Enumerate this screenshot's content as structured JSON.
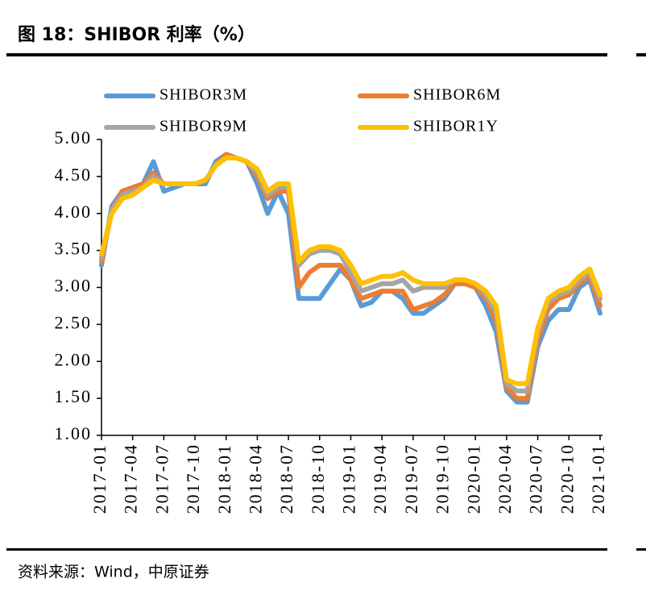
{
  "chart_data": {
    "type": "line",
    "title": "图 18：SHIBOR 利率（%）",
    "source": "资料来源：Wind，中原证券",
    "x": [
      "2017-01",
      "2017-02",
      "2017-03",
      "2017-04",
      "2017-05",
      "2017-06",
      "2017-07",
      "2017-08",
      "2017-09",
      "2017-10",
      "2017-11",
      "2017-12",
      "2018-01",
      "2018-02",
      "2018-03",
      "2018-04",
      "2018-05",
      "2018-06",
      "2018-07",
      "2018-08",
      "2018-09",
      "2018-10",
      "2018-11",
      "2018-12",
      "2019-01",
      "2019-02",
      "2019-03",
      "2019-04",
      "2019-05",
      "2019-06",
      "2019-07",
      "2019-08",
      "2019-09",
      "2019-10",
      "2019-11",
      "2019-12",
      "2020-01",
      "2020-02",
      "2020-03",
      "2020-04",
      "2020-05",
      "2020-06",
      "2020-07",
      "2020-08",
      "2020-09",
      "2020-10",
      "2020-11",
      "2020-12",
      "2021-01"
    ],
    "xticks": [
      "2017-01",
      "2017-04",
      "2017-07",
      "2017-10",
      "2018-01",
      "2018-04",
      "2018-07",
      "2018-10",
      "2019-01",
      "2019-04",
      "2019-07",
      "2019-10",
      "2020-01",
      "2020-04",
      "2020-07",
      "2020-10",
      "2021-01"
    ],
    "series": [
      {
        "name": "SHIBOR3M",
        "color": "#5b9bd5",
        "values": [
          3.3,
          4.1,
          4.3,
          4.35,
          4.4,
          4.7,
          4.3,
          4.35,
          4.4,
          4.4,
          4.4,
          4.7,
          4.8,
          4.75,
          4.7,
          4.4,
          4.0,
          4.3,
          4.0,
          2.85,
          2.85,
          2.85,
          3.05,
          3.25,
          3.1,
          2.75,
          2.8,
          2.95,
          2.95,
          2.85,
          2.65,
          2.65,
          2.75,
          2.85,
          3.05,
          3.05,
          3.0,
          2.75,
          2.4,
          1.6,
          1.45,
          1.45,
          2.2,
          2.55,
          2.7,
          2.7,
          3.0,
          3.1,
          2.65
        ]
      },
      {
        "name": "SHIBOR6M",
        "color": "#ed7d31",
        "values": [
          3.35,
          4.05,
          4.3,
          4.35,
          4.4,
          4.55,
          4.4,
          4.4,
          4.4,
          4.4,
          4.45,
          4.65,
          4.8,
          4.75,
          4.7,
          4.5,
          4.2,
          4.3,
          4.3,
          3.0,
          3.2,
          3.3,
          3.3,
          3.3,
          3.1,
          2.85,
          2.9,
          2.95,
          2.95,
          2.95,
          2.7,
          2.75,
          2.8,
          2.9,
          3.05,
          3.05,
          3.0,
          2.85,
          2.55,
          1.65,
          1.5,
          1.5,
          2.3,
          2.7,
          2.85,
          2.9,
          3.05,
          3.15,
          2.75
        ]
      },
      {
        "name": "SHIBOR9M",
        "color": "#a5a5a5",
        "values": [
          3.4,
          4.05,
          4.25,
          4.3,
          4.35,
          4.5,
          4.4,
          4.4,
          4.4,
          4.4,
          4.45,
          4.65,
          4.75,
          4.75,
          4.7,
          4.55,
          4.25,
          4.35,
          4.35,
          3.3,
          3.45,
          3.5,
          3.5,
          3.45,
          3.2,
          2.95,
          3.0,
          3.05,
          3.05,
          3.1,
          2.95,
          3.0,
          3.0,
          3.0,
          3.1,
          3.1,
          3.05,
          2.9,
          2.65,
          1.7,
          1.6,
          1.6,
          2.4,
          2.8,
          2.9,
          2.95,
          3.1,
          3.2,
          2.85
        ]
      },
      {
        "name": "SHIBOR1Y",
        "color": "#ffc000",
        "values": [
          3.45,
          4.0,
          4.2,
          4.25,
          4.35,
          4.45,
          4.4,
          4.4,
          4.4,
          4.4,
          4.45,
          4.65,
          4.75,
          4.75,
          4.7,
          4.6,
          4.3,
          4.4,
          4.4,
          3.35,
          3.5,
          3.55,
          3.55,
          3.5,
          3.3,
          3.05,
          3.1,
          3.15,
          3.15,
          3.2,
          3.1,
          3.05,
          3.05,
          3.05,
          3.1,
          3.1,
          3.05,
          2.95,
          2.75,
          1.75,
          1.7,
          1.7,
          2.45,
          2.85,
          2.95,
          3.0,
          3.15,
          3.25,
          2.9
        ]
      }
    ],
    "ylim": [
      1,
      5
    ],
    "yticks": [
      {
        "value": 1,
        "label": "1.00"
      },
      {
        "value": 1.5,
        "label": "1.50"
      },
      {
        "value": 2,
        "label": "2.00"
      },
      {
        "value": 2.5,
        "label": "2.50"
      },
      {
        "value": 3,
        "label": "3.00"
      },
      {
        "value": 3.5,
        "label": "3.50"
      },
      {
        "value": 4,
        "label": "4.00"
      },
      {
        "value": 4.5,
        "label": "4.50"
      },
      {
        "value": 5,
        "label": "5.00"
      }
    ]
  }
}
